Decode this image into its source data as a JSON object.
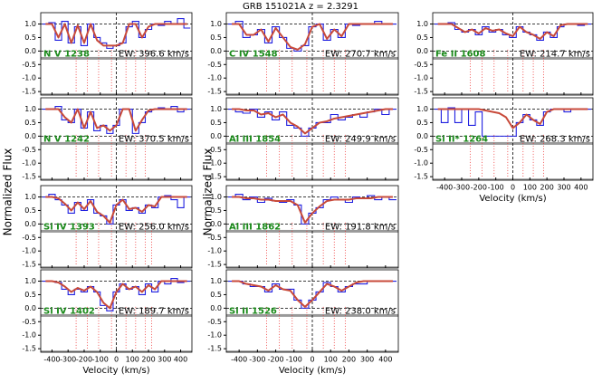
{
  "chart_data": {
    "type": "line",
    "title": "GRB 151021A  z = 2.3291",
    "ylabel": "Normalized Flux",
    "xlabel": "Velocity (km/s)",
    "xlim": [
      -470,
      470
    ],
    "xticks": [
      -400,
      -300,
      -200,
      -100,
      0,
      100,
      200,
      300,
      400
    ],
    "ylim": [
      -1.63,
      1.42
    ],
    "yticks": [
      {
        "value": 1,
        "label": "1.0"
      },
      {
        "value": 0.5,
        "label": "0.5"
      },
      {
        "value": 0,
        "label": "0.0"
      },
      -0.5,
      {
        "value": -1,
        "label": "-1.0"
      },
      -1.5
    ],
    "velocity": [
      -440,
      -400,
      -360,
      -320,
      -280,
      -240,
      -200,
      -160,
      -120,
      -80,
      -40,
      0,
      40,
      80,
      120,
      160,
      200,
      240,
      280,
      320,
      360,
      400,
      440
    ],
    "panels": [
      {
        "name": "N V 1238",
        "ew": "EW: 396.6 km/s",
        "flux": [
          1.0,
          1.05,
          0.4,
          1.1,
          0.3,
          0.9,
          0.2,
          1.0,
          0.5,
          0.3,
          0.1,
          0.2,
          0.3,
          0.9,
          1.1,
          0.5,
          0.8,
          1.0,
          0.95,
          1.1,
          1.0,
          1.2,
          0.85
        ],
        "model": [
          1.0,
          1.0,
          0.5,
          1.0,
          0.3,
          0.95,
          0.3,
          1.0,
          0.4,
          0.2,
          0.2,
          0.2,
          0.3,
          1.0,
          1.0,
          0.5,
          0.9,
          1.0,
          1.0,
          1.0,
          1.0,
          1.0,
          1.0
        ],
        "components": [
          -250,
          -180,
          -110,
          -30,
          60,
          120,
          180
        ]
      },
      {
        "name": "N V 1242",
        "ew": "EW: 370.5 km/s",
        "flux": [
          1.0,
          1.0,
          1.1,
          0.6,
          0.5,
          1.0,
          0.3,
          0.9,
          0.2,
          0.4,
          0.1,
          0.4,
          1.0,
          1.0,
          0.1,
          0.5,
          0.9,
          1.0,
          1.05,
          1.0,
          1.1,
          0.9,
          1.0
        ],
        "model": [
          1.0,
          1.0,
          1.0,
          0.7,
          0.5,
          1.0,
          0.3,
          0.9,
          0.3,
          0.4,
          0.2,
          0.4,
          1.0,
          1.0,
          0.2,
          0.6,
          0.95,
          1.0,
          1.0,
          1.0,
          1.0,
          1.0,
          1.0
        ],
        "components": [
          -250,
          -180,
          -110,
          -30,
          60,
          120,
          180
        ]
      },
      {
        "name": "Si IV 1393",
        "ew": "EW: 256.0 km/s",
        "flux": [
          1.0,
          1.1,
          0.9,
          0.7,
          0.4,
          0.8,
          0.5,
          0.9,
          0.4,
          0.3,
          0.0,
          0.7,
          0.9,
          0.5,
          0.6,
          0.4,
          0.7,
          0.6,
          1.0,
          1.05,
          0.9,
          0.6,
          1.0
        ],
        "model": [
          1.0,
          1.0,
          0.95,
          0.75,
          0.5,
          0.8,
          0.55,
          0.85,
          0.45,
          0.3,
          0.05,
          0.7,
          0.9,
          0.55,
          0.6,
          0.45,
          0.7,
          0.65,
          1.0,
          1.0,
          1.0,
          1.0,
          1.0
        ],
        "components": [
          -250,
          -180,
          -110,
          -30,
          60,
          120,
          180,
          220
        ]
      },
      {
        "name": "Si IV 1402",
        "ew": "EW: 189.7 km/s",
        "flux": [
          1.0,
          1.0,
          0.95,
          0.7,
          0.5,
          0.7,
          0.6,
          0.8,
          0.6,
          0.1,
          -0.1,
          0.6,
          0.9,
          0.7,
          0.8,
          0.5,
          0.9,
          0.6,
          1.0,
          0.9,
          1.1,
          0.95,
          1.0
        ],
        "model": [
          1.0,
          1.0,
          0.95,
          0.8,
          0.6,
          0.75,
          0.65,
          0.8,
          0.6,
          0.2,
          0.0,
          0.6,
          0.9,
          0.7,
          0.8,
          0.6,
          0.85,
          0.7,
          1.0,
          1.0,
          1.0,
          1.0,
          1.0
        ],
        "components": [
          -250,
          -180,
          -110,
          -30,
          60,
          120,
          180,
          220
        ]
      },
      {
        "name": "C IV 1548",
        "ew": "EW: 270.7 km/s",
        "flux": [
          1.0,
          1.1,
          0.5,
          0.6,
          0.8,
          0.3,
          0.9,
          0.5,
          0.1,
          0.0,
          0.2,
          0.9,
          1.0,
          0.4,
          0.8,
          0.5,
          1.0,
          0.95,
          1.0,
          1.0,
          1.1,
          1.0,
          1.0
        ],
        "model": [
          1.0,
          1.0,
          0.6,
          0.6,
          0.8,
          0.35,
          0.85,
          0.5,
          0.15,
          0.05,
          0.25,
          0.9,
          1.0,
          0.45,
          0.8,
          0.55,
          1.0,
          1.0,
          1.0,
          1.0,
          1.0,
          1.0,
          1.0
        ],
        "components": [
          -250,
          -180,
          -110,
          -30,
          60,
          120,
          180
        ]
      },
      {
        "name": "Al III 1854",
        "ew": "EW: 249.9 km/s",
        "flux": [
          1.0,
          0.9,
          0.85,
          1.0,
          0.7,
          0.9,
          0.6,
          0.9,
          0.4,
          0.3,
          0.0,
          0.3,
          0.5,
          0.5,
          0.8,
          0.6,
          0.7,
          0.8,
          0.7,
          0.9,
          1.0,
          0.8,
          1.0
        ],
        "model": [
          1.0,
          1.0,
          0.95,
          0.95,
          0.8,
          0.85,
          0.7,
          0.8,
          0.5,
          0.35,
          0.1,
          0.3,
          0.5,
          0.55,
          0.65,
          0.7,
          0.75,
          0.8,
          0.85,
          0.9,
          0.95,
          1.0,
          1.0
        ],
        "components": [
          -250,
          -180,
          -110,
          -30,
          60,
          120,
          180
        ]
      },
      {
        "name": "Al III 1862",
        "ew": "EW: 191.8 km/s",
        "flux": [
          1.0,
          1.1,
          0.9,
          1.0,
          0.8,
          0.95,
          0.85,
          0.8,
          0.9,
          0.7,
          0.0,
          0.4,
          0.6,
          0.9,
          1.0,
          0.9,
          0.8,
          1.0,
          0.95,
          1.05,
          0.9,
          1.0,
          0.9
        ],
        "model": [
          1.0,
          1.0,
          0.95,
          0.95,
          0.9,
          0.9,
          0.85,
          0.85,
          0.85,
          0.7,
          0.05,
          0.4,
          0.65,
          0.85,
          0.9,
          0.9,
          0.9,
          0.95,
          0.95,
          0.95,
          1.0,
          1.0,
          1.0
        ],
        "components": [
          -250,
          -180,
          -110,
          -30,
          60,
          120,
          180
        ]
      },
      {
        "name": "Si II 1526",
        "ew": "EW: 238.0 km/s",
        "flux": [
          1.0,
          1.0,
          0.9,
          0.8,
          0.8,
          0.6,
          0.9,
          0.7,
          0.7,
          0.3,
          0.0,
          0.3,
          0.6,
          0.95,
          0.8,
          0.6,
          0.8,
          0.9,
          0.9,
          1.0,
          1.0,
          1.0,
          1.0
        ],
        "model": [
          1.0,
          1.0,
          0.9,
          0.85,
          0.8,
          0.65,
          0.85,
          0.7,
          0.65,
          0.3,
          0.05,
          0.3,
          0.6,
          0.9,
          0.8,
          0.65,
          0.8,
          0.95,
          1.0,
          1.0,
          1.0,
          1.0,
          1.0
        ],
        "components": [
          -250,
          -180,
          -110,
          -30,
          60,
          120,
          180
        ]
      },
      {
        "name": "Fe II 1608",
        "ew": "EW: 214.7 km/s",
        "flux": [
          1.0,
          1.0,
          1.05,
          0.8,
          0.7,
          0.8,
          0.6,
          0.9,
          0.7,
          0.8,
          0.6,
          0.5,
          0.9,
          0.7,
          0.6,
          0.4,
          0.7,
          0.5,
          0.9,
          1.0,
          1.0,
          0.95,
          1.0
        ],
        "model": [
          1.0,
          1.0,
          1.0,
          0.85,
          0.7,
          0.8,
          0.65,
          0.85,
          0.75,
          0.8,
          0.65,
          0.55,
          0.9,
          0.7,
          0.6,
          0.45,
          0.7,
          0.55,
          0.95,
          1.0,
          1.0,
          1.0,
          1.0
        ],
        "components": [
          -250,
          -180,
          -110,
          -30,
          60,
          120,
          180
        ]
      },
      {
        "name": "Si II* 1264",
        "ew": "EW: 268.3 km/s",
        "flux": [
          1.0,
          0.5,
          1.05,
          0.5,
          1.0,
          0.4,
          0.9,
          0.0,
          0.0,
          0.0,
          0.0,
          0.0,
          0.5,
          0.8,
          0.6,
          0.4,
          0.9,
          1.0,
          1.0,
          0.9,
          1.0,
          1.0,
          1.0
        ],
        "model": [
          1.0,
          1.0,
          1.0,
          1.0,
          1.0,
          1.0,
          1.0,
          0.95,
          0.9,
          0.85,
          0.7,
          0.3,
          0.5,
          0.8,
          0.6,
          0.45,
          0.9,
          1.0,
          1.0,
          1.0,
          1.0,
          1.0,
          1.0
        ],
        "components": [
          -250,
          -180,
          -110,
          -30,
          60,
          120,
          180
        ]
      }
    ]
  }
}
